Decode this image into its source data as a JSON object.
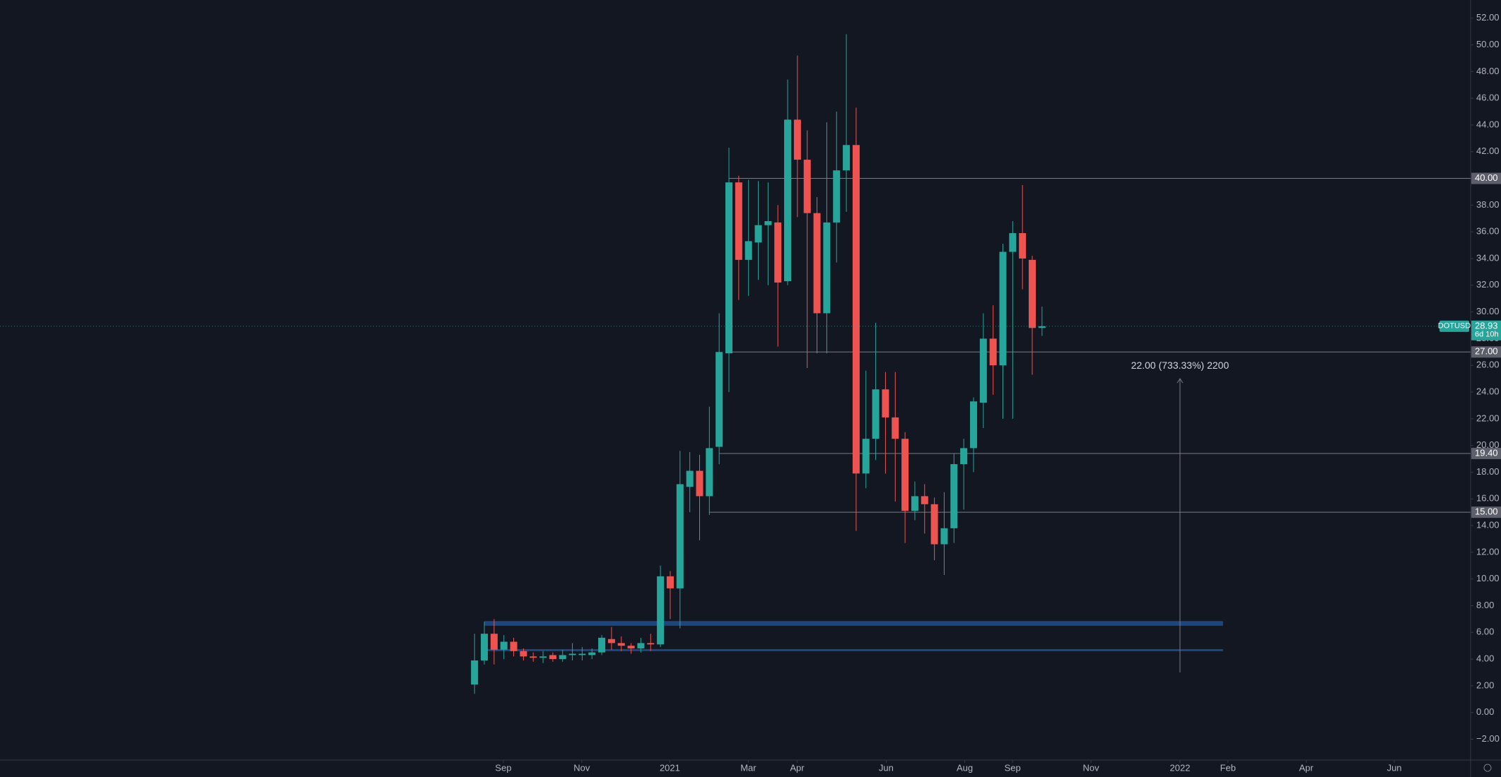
{
  "chart_data": {
    "type": "candlestick",
    "symbol": "DOTUSD",
    "up_color": "#26a69a",
    "down_color": "#ef5350",
    "categories": [
      null,
      null,
      null,
      null,
      null,
      null,
      null,
      null,
      null,
      null,
      null,
      null,
      null,
      null,
      null,
      null,
      null,
      null,
      null,
      null,
      null,
      null,
      null,
      null,
      null,
      null,
      null,
      null,
      null,
      null,
      null,
      null,
      null,
      null,
      null,
      null,
      null,
      null,
      null,
      null,
      null,
      null,
      null,
      null,
      null,
      null,
      null,
      null,
      null,
      null,
      null,
      null,
      null,
      null,
      null,
      null,
      null,
      null,
      null
    ],
    "open": [
      2.1,
      3.9,
      5.9,
      4.7,
      5.3,
      4.6,
      4.2,
      4.1,
      4.3,
      4.0,
      4.3,
      4.3,
      4.3,
      4.5,
      5.5,
      5.2,
      5.0,
      4.8,
      5.2,
      5.1,
      10.2,
      9.3,
      16.9,
      18.1,
      16.2,
      19.9,
      26.9,
      39.7,
      33.9,
      35.2,
      36.5,
      36.7,
      32.3,
      44.4,
      41.4,
      37.4,
      29.9,
      36.7,
      40.6,
      42.5,
      17.9,
      20.5,
      24.2,
      22.1,
      20.5,
      15.1,
      16.2,
      15.6,
      12.6,
      13.8,
      18.6,
      19.8,
      23.2,
      28.0,
      26.0,
      34.5,
      35.9,
      33.9,
      28.8
    ],
    "high": [
      5.9,
      6.8,
      7.0,
      5.8,
      5.6,
      4.8,
      4.5,
      4.6,
      4.5,
      4.7,
      5.2,
      4.9,
      4.8,
      5.8,
      6.4,
      5.7,
      5.2,
      5.6,
      5.9,
      11.0,
      10.6,
      19.6,
      19.5,
      19.3,
      22.9,
      29.9,
      42.3,
      40.2,
      39.9,
      39.8,
      39.7,
      38.0,
      47.4,
      49.2,
      43.6,
      38.6,
      44.2,
      45.0,
      50.8,
      45.3,
      25.6,
      29.2,
      25.5,
      25.5,
      21.0,
      17.3,
      17.1,
      16.1,
      16.5,
      19.4,
      20.5,
      23.6,
      29.9,
      30.5,
      35.1,
      36.8,
      39.5,
      34.2,
      30.4
    ],
    "low": [
      1.4,
      3.6,
      3.6,
      4.0,
      4.2,
      3.9,
      3.8,
      3.7,
      3.8,
      3.8,
      3.9,
      3.9,
      4.0,
      4.3,
      4.7,
      4.6,
      4.4,
      4.5,
      4.6,
      4.9,
      7.0,
      6.3,
      15.0,
      12.9,
      14.8,
      18.6,
      24.0,
      30.9,
      31.2,
      32.4,
      32.0,
      27.4,
      32.0,
      37.1,
      25.8,
      26.9,
      26.9,
      33.7,
      37.5,
      13.6,
      16.8,
      18.9,
      17.9,
      15.8,
      12.7,
      14.4,
      13.4,
      11.4,
      10.3,
      12.7,
      15.2,
      18.0,
      21.3,
      23.8,
      22.0,
      22.0,
      31.7,
      25.3,
      28.2
    ],
    "close": [
      3.9,
      5.9,
      4.7,
      5.3,
      4.6,
      4.2,
      4.1,
      4.2,
      4.0,
      4.3,
      4.4,
      4.4,
      4.5,
      5.6,
      5.2,
      5.0,
      4.8,
      5.2,
      5.1,
      10.2,
      9.3,
      17.1,
      18.1,
      16.2,
      19.8,
      27.0,
      39.7,
      33.9,
      35.3,
      36.5,
      36.8,
      32.2,
      44.4,
      41.4,
      37.4,
      29.9,
      36.7,
      40.6,
      42.5,
      17.9,
      20.5,
      24.2,
      22.1,
      20.5,
      15.1,
      16.2,
      15.6,
      12.6,
      13.8,
      18.6,
      19.8,
      23.3,
      28.0,
      26.0,
      34.5,
      35.9,
      34.0,
      28.8,
      28.93
    ],
    "last": {
      "price": 28.93,
      "countdown": "6d 10h"
    },
    "levels": [
      {
        "value": 40,
        "label": "40.00"
      },
      {
        "value": 27,
        "label": "27.00"
      },
      {
        "value": 19.4,
        "label": "19.40"
      },
      {
        "value": 15,
        "label": "15.00"
      }
    ],
    "zones": [
      {
        "low": 6.5,
        "high": 6.85
      },
      {
        "low": 4.6,
        "high": 4.75
      }
    ],
    "measure": {
      "from": 3.0,
      "to": 25.0,
      "label": "22.00 (733.33%) 2200"
    },
    "ylim": [
      -3.56,
      53.36
    ],
    "yticks": [
      {
        "value": 52,
        "label": "52.00"
      },
      {
        "value": 50,
        "label": "50.00"
      },
      {
        "value": 48,
        "label": "48.00"
      },
      {
        "value": 46,
        "label": "46.00"
      },
      {
        "value": 44,
        "label": "44.00"
      },
      {
        "value": 42,
        "label": "42.00"
      },
      {
        "value": 40,
        "label": "40.00"
      },
      {
        "value": 38,
        "label": "38.00"
      },
      {
        "value": 36,
        "label": "36.00"
      },
      {
        "value": 34,
        "label": "34.00"
      },
      {
        "value": 32,
        "label": "32.00"
      },
      {
        "value": 30,
        "label": "30.00"
      },
      {
        "value": 28,
        "label": "28.00"
      },
      {
        "value": 26,
        "label": "26.00"
      },
      {
        "value": 24,
        "label": "24.00"
      },
      {
        "value": 22,
        "label": "22.00"
      },
      {
        "value": 20,
        "label": "20.00"
      },
      {
        "value": 18,
        "label": "18.00"
      },
      {
        "value": 16,
        "label": "16.00"
      },
      {
        "value": 14,
        "label": "14.00"
      },
      {
        "value": 12,
        "label": "12.00"
      },
      {
        "value": 10,
        "label": "10.00"
      },
      {
        "value": 8,
        "label": "8.00"
      },
      {
        "value": 6,
        "label": "6.00"
      },
      {
        "value": 4,
        "label": "4.00"
      },
      {
        "value": 2,
        "label": "2.00"
      },
      {
        "value": 0,
        "label": "0.00"
      },
      {
        "value": -2,
        "label": "−2.00"
      }
    ],
    "xlim": [
      -48.5,
      101.8
    ],
    "xticks": [
      {
        "value": 2.94,
        "label": "Sep"
      },
      {
        "value": 10.96,
        "label": "Nov"
      },
      {
        "value": 19.96,
        "label": "2021"
      },
      {
        "value": 27.98,
        "label": "Mar"
      },
      {
        "value": 32.97,
        "label": "Apr"
      },
      {
        "value": 42.07,
        "label": "Jun"
      },
      {
        "value": 50.1,
        "label": "Aug"
      },
      {
        "value": 54.99,
        "label": "Sep"
      },
      {
        "value": 63.0,
        "label": "Nov"
      },
      {
        "value": 72.1,
        "label": "2022"
      },
      {
        "value": 77.0,
        "label": "Feb"
      },
      {
        "value": 85.0,
        "label": "Apr"
      },
      {
        "value": 94.0,
        "label": "Jun"
      }
    ]
  }
}
